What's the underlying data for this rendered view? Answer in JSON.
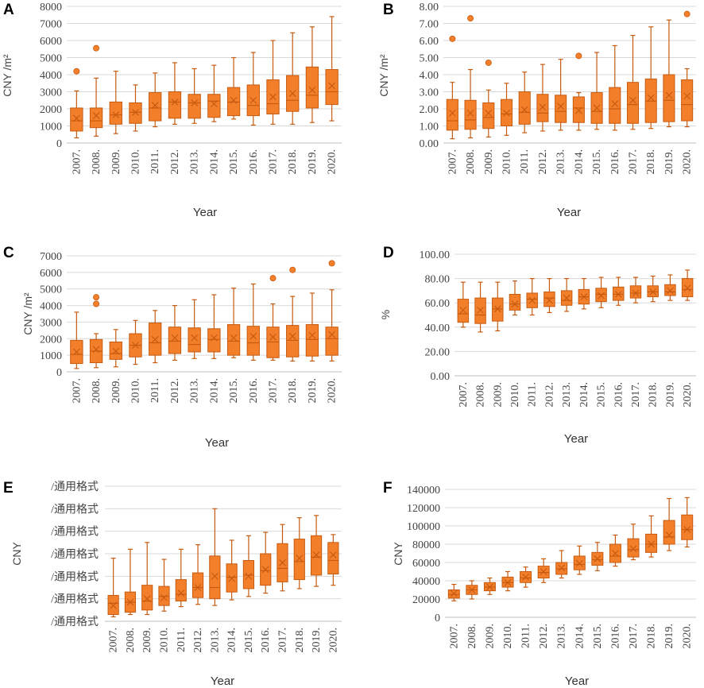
{
  "colors": {
    "box_fill": "#f47f2a",
    "box_stroke": "#c65b10",
    "grid": "#d9d9d9",
    "axis": "#bfbfbf"
  },
  "chart_data": [
    {
      "panel": "A",
      "type": "box",
      "ylabel": "CNY /m²",
      "xlabel": "Year",
      "ylim": [
        0,
        8000
      ],
      "yticks": [
        "0",
        "1000",
        "2000",
        "3000",
        "4000",
        "5000",
        "6000",
        "7000",
        "8000"
      ],
      "categories": [
        "2007.",
        "2008.",
        "2009.",
        "2010.",
        "2011.",
        "2012.",
        "2013.",
        "2014.",
        "2015.",
        "2016.",
        "2017.",
        "2018.",
        "2019.",
        "2020."
      ],
      "boxes": [
        {
          "min": 300,
          "q1": 700,
          "median": 1300,
          "q3": 2050,
          "max": 3050,
          "mean": 1450,
          "outliers": [
            4200
          ]
        },
        {
          "min": 400,
          "q1": 900,
          "median": 1300,
          "q3": 2050,
          "max": 3800,
          "mean": 1600,
          "outliers": [
            5550
          ]
        },
        {
          "min": 550,
          "q1": 1100,
          "median": 1650,
          "q3": 2400,
          "max": 4200,
          "mean": 1650,
          "outliers": []
        },
        {
          "min": 700,
          "q1": 1150,
          "median": 1800,
          "q3": 2350,
          "max": 3400,
          "mean": 1800,
          "outliers": []
        },
        {
          "min": 950,
          "q1": 1300,
          "median": 2050,
          "q3": 2950,
          "max": 4100,
          "mean": 2200,
          "outliers": []
        },
        {
          "min": 1100,
          "q1": 1450,
          "median": 2400,
          "q3": 3000,
          "max": 4700,
          "mean": 2400,
          "outliers": []
        },
        {
          "min": 1150,
          "q1": 1450,
          "median": 2350,
          "q3": 2850,
          "max": 4350,
          "mean": 2350,
          "outliers": []
        },
        {
          "min": 1250,
          "q1": 1500,
          "median": 2450,
          "q3": 2850,
          "max": 4550,
          "mean": 2300,
          "outliers": []
        },
        {
          "min": 1400,
          "q1": 1600,
          "median": 2400,
          "q3": 3250,
          "max": 5000,
          "mean": 2500,
          "outliers": []
        },
        {
          "min": 1050,
          "q1": 1600,
          "median": 2200,
          "q3": 3400,
          "max": 5300,
          "mean": 2500,
          "outliers": []
        },
        {
          "min": 1100,
          "q1": 1700,
          "median": 2300,
          "q3": 3700,
          "max": 6000,
          "mean": 2700,
          "outliers": []
        },
        {
          "min": 1100,
          "q1": 1850,
          "median": 2500,
          "q3": 3950,
          "max": 6450,
          "mean": 2900,
          "outliers": []
        },
        {
          "min": 1200,
          "q1": 2050,
          "median": 2800,
          "q3": 4450,
          "max": 6800,
          "mean": 3100,
          "outliers": []
        },
        {
          "min": 1300,
          "q1": 2250,
          "median": 3000,
          "q3": 4300,
          "max": 7400,
          "mean": 3350,
          "outliers": []
        }
      ]
    },
    {
      "panel": "B",
      "type": "box",
      "ylabel": "CNY /m²",
      "xlabel": "Year",
      "ylim": [
        0,
        8
      ],
      "yticks": [
        "0.00",
        "1.00",
        "2.00",
        "3.00",
        "4.00",
        "5.00",
        "6.00",
        "7.00",
        "8.00"
      ],
      "categories": [
        "2007.",
        "2008.",
        "2009.",
        "2010.",
        "2011.",
        "2012.",
        "2013.",
        "2014.",
        "2015.",
        "2016.",
        "2017.",
        "2018.",
        "2019.",
        "2020."
      ],
      "boxes": [
        {
          "min": 0.25,
          "q1": 0.75,
          "median": 1.3,
          "q3": 2.55,
          "max": 3.55,
          "mean": 1.75,
          "outliers": [
            6.1
          ]
        },
        {
          "min": 0.3,
          "q1": 0.8,
          "median": 1.35,
          "q3": 2.5,
          "max": 4.3,
          "mean": 1.75,
          "outliers": [
            7.3
          ]
        },
        {
          "min": 0.35,
          "q1": 0.85,
          "median": 1.5,
          "q3": 2.35,
          "max": 3.1,
          "mean": 1.75,
          "outliers": [
            4.7
          ]
        },
        {
          "min": 0.45,
          "q1": 1.0,
          "median": 1.7,
          "q3": 2.55,
          "max": 3.5,
          "mean": 1.75,
          "outliers": []
        },
        {
          "min": 0.6,
          "q1": 1.1,
          "median": 1.8,
          "q3": 3.0,
          "max": 4.15,
          "mean": 1.95,
          "outliers": []
        },
        {
          "min": 0.7,
          "q1": 1.25,
          "median": 1.75,
          "q3": 2.85,
          "max": 4.6,
          "mean": 2.1,
          "outliers": []
        },
        {
          "min": 0.75,
          "q1": 1.2,
          "median": 1.85,
          "q3": 2.8,
          "max": 4.9,
          "mean": 2.15,
          "outliers": []
        },
        {
          "min": 0.75,
          "q1": 1.2,
          "median": 2.05,
          "q3": 2.7,
          "max": 2.95,
          "mean": 1.9,
          "outliers": [
            5.1
          ]
        },
        {
          "min": 0.8,
          "q1": 1.15,
          "median": 1.85,
          "q3": 2.95,
          "max": 5.3,
          "mean": 2.05,
          "outliers": []
        },
        {
          "min": 0.75,
          "q1": 1.15,
          "median": 2.0,
          "q3": 3.25,
          "max": 5.7,
          "mean": 2.3,
          "outliers": []
        },
        {
          "min": 0.8,
          "q1": 1.15,
          "median": 2.25,
          "q3": 3.55,
          "max": 6.3,
          "mean": 2.5,
          "outliers": []
        },
        {
          "min": 0.85,
          "q1": 1.2,
          "median": 2.45,
          "q3": 3.75,
          "max": 6.8,
          "mean": 2.65,
          "outliers": []
        },
        {
          "min": 0.95,
          "q1": 1.25,
          "median": 2.5,
          "q3": 4.0,
          "max": 7.2,
          "mean": 2.8,
          "outliers": []
        },
        {
          "min": 0.95,
          "q1": 1.3,
          "median": 2.25,
          "q3": 3.7,
          "max": 4.35,
          "mean": 2.75,
          "outliers": [
            7.55
          ]
        }
      ]
    },
    {
      "panel": "C",
      "type": "box",
      "ylabel": "CNY /m²",
      "xlabel": "Year",
      "ylim": [
        0,
        7000
      ],
      "yticks": [
        "0",
        "1000",
        "2000",
        "3000",
        "4000",
        "5000",
        "6000",
        "7000"
      ],
      "categories": [
        "2007.",
        "2008.",
        "2009.",
        "2010.",
        "2011.",
        "2012.",
        "2013.",
        "2014.",
        "2015.",
        "2016.",
        "2017.",
        "2018.",
        "2019.",
        "2020."
      ],
      "boxes": [
        {
          "min": 200,
          "q1": 500,
          "median": 1050,
          "q3": 1900,
          "max": 3600,
          "mean": 1200,
          "outliers": []
        },
        {
          "min": 250,
          "q1": 550,
          "median": 1250,
          "q3": 1950,
          "max": 2300,
          "mean": 1350,
          "outliers": [
            4100,
            4500
          ]
        },
        {
          "min": 300,
          "q1": 750,
          "median": 1100,
          "q3": 1800,
          "max": 2550,
          "mean": 1250,
          "outliers": []
        },
        {
          "min": 450,
          "q1": 900,
          "median": 1600,
          "q3": 2300,
          "max": 3100,
          "mean": 1600,
          "outliers": []
        },
        {
          "min": 550,
          "q1": 1000,
          "median": 1750,
          "q3": 2950,
          "max": 3700,
          "mean": 1950,
          "outliers": []
        },
        {
          "min": 700,
          "q1": 1100,
          "median": 1850,
          "q3": 2700,
          "max": 4000,
          "mean": 2050,
          "outliers": []
        },
        {
          "min": 800,
          "q1": 1200,
          "median": 1650,
          "q3": 2650,
          "max": 4350,
          "mean": 2050,
          "outliers": []
        },
        {
          "min": 800,
          "q1": 1200,
          "median": 1950,
          "q3": 2600,
          "max": 4650,
          "mean": 2050,
          "outliers": []
        },
        {
          "min": 850,
          "q1": 1000,
          "median": 1850,
          "q3": 2850,
          "max": 5050,
          "mean": 2050,
          "outliers": []
        },
        {
          "min": 700,
          "q1": 1000,
          "median": 1750,
          "q3": 2750,
          "max": 5300,
          "mean": 2150,
          "outliers": []
        },
        {
          "min": 700,
          "q1": 850,
          "median": 1800,
          "q3": 2700,
          "max": 4100,
          "mean": 2100,
          "outliers": [
            5650
          ]
        },
        {
          "min": 650,
          "q1": 900,
          "median": 1900,
          "q3": 2800,
          "max": 4550,
          "mean": 2150,
          "outliers": [
            6150
          ]
        },
        {
          "min": 650,
          "q1": 950,
          "median": 1950,
          "q3": 2850,
          "max": 4750,
          "mean": 2200,
          "outliers": []
        },
        {
          "min": 650,
          "q1": 1000,
          "median": 2000,
          "q3": 2700,
          "max": 4950,
          "mean": 2250,
          "outliers": [
            6550
          ]
        }
      ]
    },
    {
      "panel": "D",
      "type": "box",
      "ylabel": "%",
      "xlabel": "Year",
      "ylim": [
        0,
        100
      ],
      "yticks": [
        "0.00",
        "20.00",
        "40.00",
        "60.00",
        "80.00",
        "100.00"
      ],
      "categories": [
        "2007.",
        "2008.",
        "2009.",
        "2010.",
        "2011.",
        "2012.",
        "2013.",
        "2014.",
        "2015.",
        "2016.",
        "2017.",
        "2018.",
        "2019.",
        "2020."
      ],
      "boxes": [
        {
          "min": 40,
          "q1": 44,
          "median": 51,
          "q3": 63,
          "max": 77,
          "mean": 54,
          "outliers": []
        },
        {
          "min": 36,
          "q1": 43,
          "median": 50,
          "q3": 64,
          "max": 77,
          "mean": 54,
          "outliers": []
        },
        {
          "min": 37,
          "q1": 45,
          "median": 55,
          "q3": 64,
          "max": 77,
          "mean": 55,
          "outliers": []
        },
        {
          "min": 50,
          "q1": 54,
          "median": 59,
          "q3": 67,
          "max": 78,
          "mean": 59,
          "outliers": []
        },
        {
          "min": 50,
          "q1": 56,
          "median": 63,
          "q3": 68,
          "max": 80,
          "mean": 62,
          "outliers": []
        },
        {
          "min": 52,
          "q1": 57,
          "median": 64,
          "q3": 69,
          "max": 80,
          "mean": 62,
          "outliers": []
        },
        {
          "min": 53,
          "q1": 58,
          "median": 62,
          "q3": 70,
          "max": 80,
          "mean": 64,
          "outliers": []
        },
        {
          "min": 55,
          "q1": 59,
          "median": 65,
          "q3": 71,
          "max": 80,
          "mean": 65,
          "outliers": []
        },
        {
          "min": 56,
          "q1": 61,
          "median": 67,
          "q3": 72,
          "max": 81,
          "mean": 66,
          "outliers": []
        },
        {
          "min": 58,
          "q1": 62,
          "median": 67,
          "q3": 73,
          "max": 81,
          "mean": 67,
          "outliers": []
        },
        {
          "min": 60,
          "q1": 64,
          "median": 68,
          "q3": 74,
          "max": 81,
          "mean": 68,
          "outliers": []
        },
        {
          "min": 61,
          "q1": 65,
          "median": 69,
          "q3": 74,
          "max": 82,
          "mean": 69,
          "outliers": []
        },
        {
          "min": 62,
          "q1": 66,
          "median": 69,
          "q3": 75,
          "max": 83,
          "mean": 70,
          "outliers": []
        },
        {
          "min": 62,
          "q1": 65,
          "median": 71,
          "q3": 80,
          "max": 87,
          "mean": 72,
          "outliers": []
        }
      ]
    },
    {
      "panel": "E",
      "type": "box",
      "ylabel": "CNY",
      "xlabel": "Year",
      "ylim": [
        0,
        6
      ],
      "yticks": [
        "/通用格式",
        "/通用格式",
        "/通用格式",
        "/通用格式",
        "/通用格式",
        "/通用格式",
        "/通用格式"
      ],
      "categories": [
        "2007.",
        "2008.",
        "2009.",
        "2010.",
        "2011.",
        "2012.",
        "2013.",
        "2014.",
        "2015.",
        "2016.",
        "2017.",
        "2018.",
        "2019.",
        "2020."
      ],
      "boxes": [
        {
          "min": 0.2,
          "q1": 0.3,
          "median": 0.8,
          "q3": 1.15,
          "max": 2.8,
          "mean": 0.7,
          "outliers": []
        },
        {
          "min": 0.3,
          "q1": 0.4,
          "median": 0.85,
          "q3": 1.3,
          "max": 3.2,
          "mean": 0.85,
          "outliers": []
        },
        {
          "min": 0.3,
          "q1": 0.5,
          "median": 0.9,
          "q3": 1.6,
          "max": 3.5,
          "mean": 1.0,
          "outliers": []
        },
        {
          "min": 0.45,
          "q1": 0.7,
          "median": 1.1,
          "q3": 1.55,
          "max": 2.75,
          "mean": 1.05,
          "outliers": []
        },
        {
          "min": 0.65,
          "q1": 0.9,
          "median": 1.2,
          "q3": 1.85,
          "max": 3.2,
          "mean": 1.25,
          "outliers": []
        },
        {
          "min": 0.75,
          "q1": 1.05,
          "median": 1.5,
          "q3": 2.15,
          "max": 3.4,
          "mean": 1.5,
          "outliers": []
        },
        {
          "min": 0.7,
          "q1": 1.0,
          "median": 1.5,
          "q3": 2.9,
          "max": 5.0,
          "mean": 2.0,
          "outliers": []
        },
        {
          "min": 0.95,
          "q1": 1.3,
          "median": 1.95,
          "q3": 2.55,
          "max": 3.6,
          "mean": 1.9,
          "outliers": []
        },
        {
          "min": 1.1,
          "q1": 1.45,
          "median": 2.05,
          "q3": 2.7,
          "max": 3.8,
          "mean": 2.0,
          "outliers": []
        },
        {
          "min": 1.25,
          "q1": 1.6,
          "median": 2.25,
          "q3": 3.0,
          "max": 3.95,
          "mean": 2.3,
          "outliers": []
        },
        {
          "min": 1.35,
          "q1": 1.75,
          "median": 2.35,
          "q3": 3.45,
          "max": 4.3,
          "mean": 2.6,
          "outliers": []
        },
        {
          "min": 1.45,
          "q1": 1.85,
          "median": 2.65,
          "q3": 3.65,
          "max": 4.6,
          "mean": 2.8,
          "outliers": []
        },
        {
          "min": 1.55,
          "q1": 2.05,
          "median": 2.85,
          "q3": 3.8,
          "max": 4.7,
          "mean": 2.95,
          "outliers": []
        },
        {
          "min": 1.6,
          "q1": 2.1,
          "median": 2.7,
          "q3": 3.5,
          "max": 3.85,
          "mean": 2.95,
          "outliers": []
        }
      ]
    },
    {
      "panel": "F",
      "type": "box",
      "ylabel": "CNY",
      "xlabel": "Year",
      "ylim": [
        0,
        140000
      ],
      "yticks": [
        "0",
        "20000",
        "40000",
        "60000",
        "80000",
        "100000",
        "120000",
        "140000"
      ],
      "categories": [
        "2007.",
        "2008.",
        "2009.",
        "2010.",
        "2011.",
        "2012.",
        "2013.",
        "2014.",
        "2015.",
        "2016.",
        "2017.",
        "2018.",
        "2019.",
        "2020."
      ],
      "boxes": [
        {
          "min": 18000,
          "q1": 21000,
          "median": 25000,
          "q3": 30000,
          "max": 36000,
          "mean": 26000,
          "outliers": []
        },
        {
          "min": 20000,
          "q1": 25000,
          "median": 30000,
          "q3": 35000,
          "max": 40000,
          "mean": 30000,
          "outliers": []
        },
        {
          "min": 25000,
          "q1": 29000,
          "median": 33000,
          "q3": 38000,
          "max": 43000,
          "mean": 33000,
          "outliers": []
        },
        {
          "min": 29000,
          "q1": 33000,
          "median": 38000,
          "q3": 44000,
          "max": 50000,
          "mean": 38000,
          "outliers": []
        },
        {
          "min": 33000,
          "q1": 38000,
          "median": 43000,
          "q3": 50000,
          "max": 55000,
          "mean": 44000,
          "outliers": []
        },
        {
          "min": 38000,
          "q1": 43000,
          "median": 49000,
          "q3": 56000,
          "max": 64000,
          "mean": 50000,
          "outliers": []
        },
        {
          "min": 43000,
          "q1": 47000,
          "median": 53000,
          "q3": 60000,
          "max": 73000,
          "mean": 54000,
          "outliers": []
        },
        {
          "min": 47000,
          "q1": 52000,
          "median": 58000,
          "q3": 67000,
          "max": 78000,
          "mean": 59000,
          "outliers": []
        },
        {
          "min": 51000,
          "q1": 57000,
          "median": 63000,
          "q3": 71000,
          "max": 82000,
          "mean": 64000,
          "outliers": []
        },
        {
          "min": 56000,
          "q1": 60000,
          "median": 67000,
          "q3": 80000,
          "max": 90000,
          "mean": 70000,
          "outliers": []
        },
        {
          "min": 63000,
          "q1": 66000,
          "median": 74000,
          "q3": 86000,
          "max": 102000,
          "mean": 75000,
          "outliers": []
        },
        {
          "min": 66000,
          "q1": 71000,
          "median": 80000,
          "q3": 91000,
          "max": 111000,
          "mean": 80000,
          "outliers": []
        },
        {
          "min": 73000,
          "q1": 80000,
          "median": 88000,
          "q3": 106000,
          "max": 130000,
          "mean": 90000,
          "outliers": []
        },
        {
          "min": 77000,
          "q1": 85000,
          "median": 96000,
          "q3": 112000,
          "max": 131000,
          "mean": 96000,
          "outliers": []
        }
      ]
    }
  ]
}
